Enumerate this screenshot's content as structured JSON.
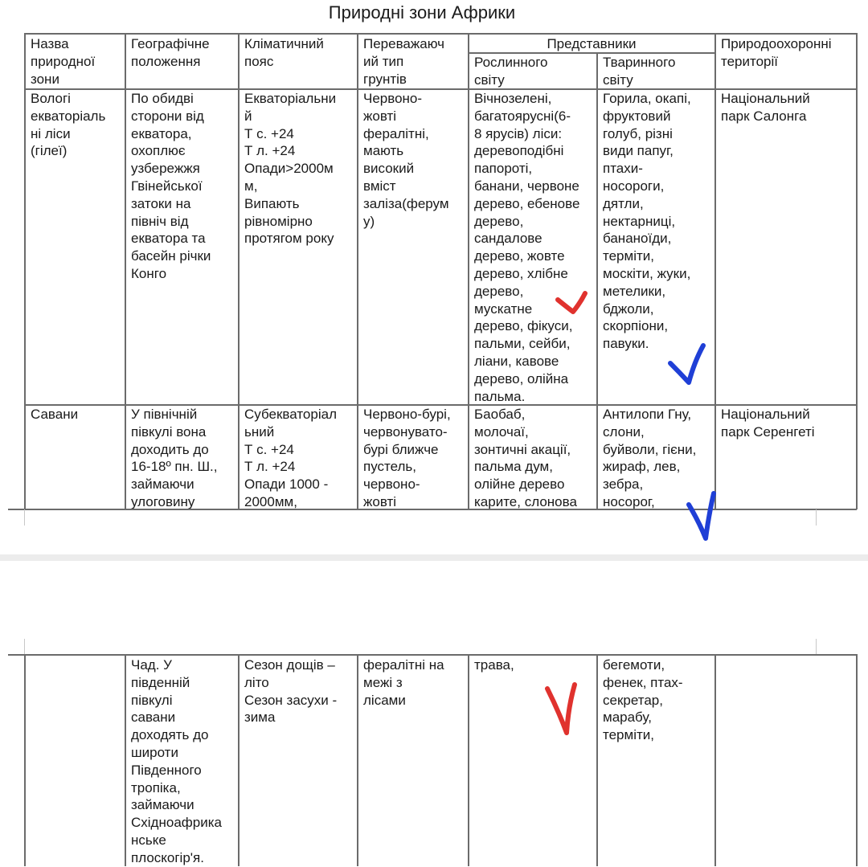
{
  "document": {
    "title": "Природні зони Африки",
    "headers": {
      "zone": "Назва\nприродної\nзони",
      "location": "Географічне\nположення",
      "climate": "Кліматичний\nпояс",
      "soil": "Переважаюч\nий тип\nгрунтів",
      "representatives": "Представники",
      "flora": "Рослинного\nсвіту",
      "fauna": "Тваринного\nсвіту",
      "protected": "Природоохоронні\nтериторії"
    },
    "rows": [
      {
        "zone": "Вологі\nекваторіаль\nні ліси\n(гілеї)",
        "location": "По обидві\nсторони від\nекватора,\nохоплює\nузбережжя\nГвінейської\nзатоки на\nпівніч від\nекватора та\nбасейн річки\nКонго",
        "climate": "Екваторіальни\nй\nТ с. +24\nТ л. +24\nОпади>2000м\nм,\nВипають\nрівномірно\nпротягом року",
        "soil": "Червоно-\nжовті\nфералітні,\nмають\nвисокий\nвміст\nзаліза(ферум\nу)",
        "flora": "Вічнозелені,\nбагатоярусні(6-\n8 ярусів) ліси:\nдеревоподібні\nпапороті,\nбанани, червоне\nдерево, ебенове\nдерево,\nсандалове\nдерево, жовте\nдерево, хлібне\nдерево,\nмускатне\nдерево, фікуси,\nпальми, сейби,\nліани, кавове\nдерево, олійна\nпальма.",
        "fauna": "Горила, окапі,\nфруктовий\nголуб, різні\nвиди папуг,\nптахи-\nносороги,\nдятли,\nнектарниці,\nбананоїди,\nтерміти,\nмоскіти, жуки,\nметелики,\nбджоли,\nскорпіони,\nпавуки.",
        "protected": "Національний\nпарк Салонга"
      },
      {
        "zone": "Савани",
        "location": "У північній\nпівкулі вона\nдоходить до\n16-18º пн. Ш.,\nзаймаючи\nулоговину",
        "climate": "Субекваторіал\nьний\nТ с. +24\nТ л. +24\nОпади 1000 -\n2000мм,",
        "soil": "Червоно-бурі,\nчервонувато-\nбурі ближче\nпустель,\nчервоно-\nжовті",
        "flora": "Баобаб,\nмолочаї,\nзонтичні акації,\nпальма дум,\nолійне дерево\nкарите, слонова",
        "fauna": "Антилопи Гну,\nслони,\nбуйволи, гієни,\nжираф, лев,\nзебра,\nносорог,",
        "protected": "Національний\nпарк Серенгеті"
      }
    ],
    "continued_row": {
      "zone": "",
      "location": "Чад. У\nпівденній\nпівкулі\nсавани\nдоходять до\nшироти\nПівденного\nтропіка,\nзаймаючи\nСхідноафрика\nнське\nплоскогір'я.",
      "climate": "Сезон дощів –\nліто\nСезон засухи -\nзима",
      "soil": "фералітні на\nмежі з\nлісами",
      "flora": "трава,",
      "fauna": "бегемоти,\nфенек, птах-\nсекретар,\nмарабу,\nтерміти,",
      "protected": ""
    },
    "annotations": {
      "red": "#e0322e",
      "blue": "#1f3fd6"
    }
  }
}
